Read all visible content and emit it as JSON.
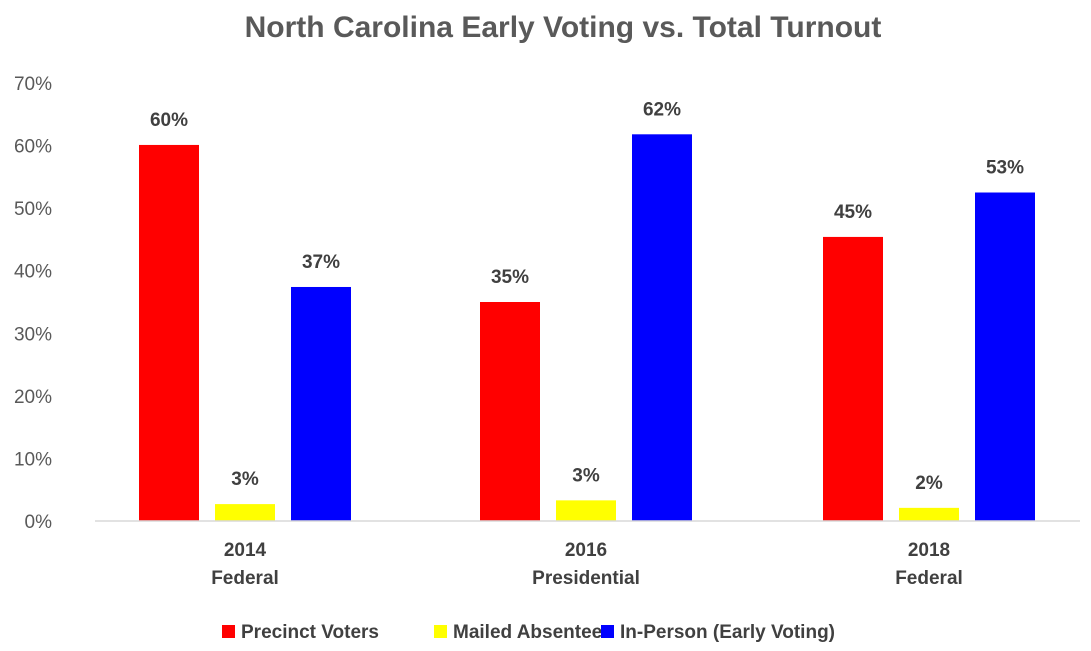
{
  "chart_data": {
    "type": "bar",
    "title": "North Carolina Early Voting vs. Total Turnout",
    "xlabel": "",
    "ylabel": "",
    "categories": [
      [
        "2014",
        "Federal"
      ],
      [
        "2016",
        "Presidential"
      ],
      [
        "2018",
        "Federal"
      ]
    ],
    "series": [
      {
        "name": "Precinct Voters",
        "color": "#ff0000",
        "values": [
          60.1,
          35.0,
          45.4
        ],
        "labels": [
          "60%",
          "35%",
          "45%"
        ]
      },
      {
        "name": "Mailed Absentee",
        "color": "#ffff00",
        "values": [
          2.7,
          3.3,
          2.1
        ],
        "labels": [
          "3%",
          "3%",
          "2%"
        ]
      },
      {
        "name": "In-Person (Early Voting)",
        "color": "#0000ff",
        "values": [
          37.4,
          61.8,
          52.5
        ],
        "labels": [
          "37%",
          "62%",
          "53%"
        ]
      }
    ],
    "y_ticks": [
      "0%",
      "10%",
      "20%",
      "30%",
      "40%",
      "50%",
      "60%",
      "70%"
    ],
    "ylim": [
      0,
      70
    ],
    "grid": false,
    "legend_position": "bottom",
    "baseline_color": "#d9d9d9"
  }
}
